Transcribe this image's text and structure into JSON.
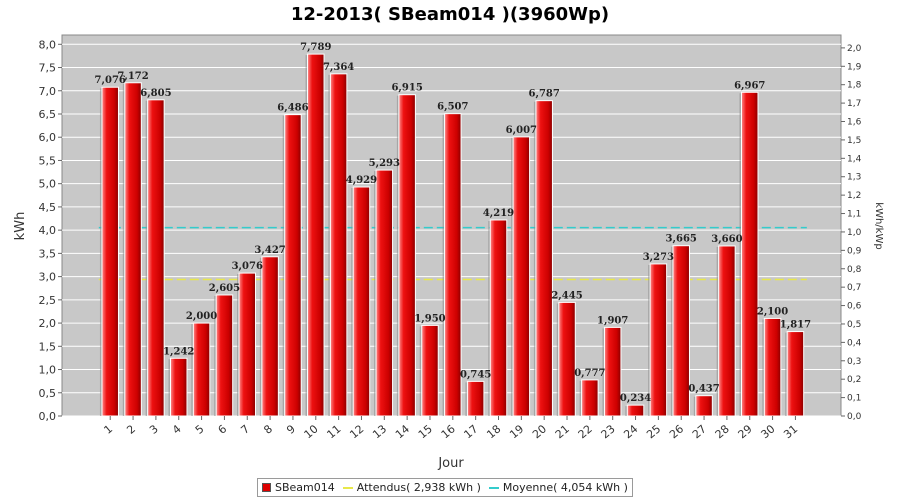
{
  "chart_data": {
    "type": "bar",
    "title": "12-2013( SBeam014 )(3960Wp)",
    "xlabel": "Jour",
    "ylabel": "kWh",
    "y2label": "kWh/kWp",
    "ylim": [
      0,
      8.2
    ],
    "y2lim": [
      0,
      2.07
    ],
    "yticks": [
      "0,0",
      "0,5",
      "1,0",
      "1,5",
      "2,0",
      "2,5",
      "3,0",
      "3,5",
      "4,0",
      "4,5",
      "5,0",
      "5,5",
      "6,0",
      "6,5",
      "7,0",
      "7,5",
      "8,0"
    ],
    "y2ticks": [
      "0,0",
      "0,1",
      "0,2",
      "0,3",
      "0,4",
      "0,5",
      "0,6",
      "0,7",
      "0,8",
      "0,9",
      "1,0",
      "1,1",
      "1,2",
      "1,3",
      "1,4",
      "1,5",
      "1,6",
      "1,7",
      "1,8",
      "1,9",
      "2,0"
    ],
    "categories": [
      "1",
      "2",
      "3",
      "4",
      "5",
      "6",
      "7",
      "8",
      "9",
      "10",
      "11",
      "12",
      "13",
      "14",
      "15",
      "16",
      "17",
      "18",
      "19",
      "20",
      "21",
      "22",
      "23",
      "24",
      "25",
      "26",
      "27",
      "28",
      "29",
      "30",
      "31"
    ],
    "series": [
      {
        "name": "SBeam014",
        "values": [
          7.076,
          7.172,
          6.805,
          1.242,
          2.0,
          2.605,
          3.076,
          3.427,
          6.486,
          7.789,
          7.364,
          4.929,
          5.293,
          6.915,
          1.95,
          6.507,
          0.745,
          4.219,
          6.007,
          6.787,
          2.445,
          0.777,
          1.907,
          0.234,
          3.273,
          3.665,
          0.437,
          3.66,
          6.967,
          2.1,
          1.817
        ],
        "labels": [
          "7,076",
          "7,172",
          "6,805",
          "1,242",
          "2,000",
          "2,605",
          "3,076",
          "3,427",
          "6,486",
          "7,789",
          "7,364",
          "4,929",
          "5,293",
          "6,915",
          "1,950",
          "6,507",
          "0,745",
          "4,219",
          "6,007",
          "6,787",
          "2,445",
          "0,777",
          "1,907",
          "0,234",
          "3,273",
          "3,665",
          "0,437",
          "3,660",
          "6,967",
          "2,100",
          "1,817"
        ],
        "color": "#dd0000"
      }
    ],
    "reference_lines": [
      {
        "name": "Attendus( 2,938 kWh )",
        "value": 2.938,
        "color": "#e8e84a"
      },
      {
        "name": "Moyenne( 4,054 kWh )",
        "value": 4.054,
        "color": "#33cccc"
      }
    ],
    "grid": true,
    "plot_background": "#c8c8c8",
    "legend_position": "bottom"
  }
}
